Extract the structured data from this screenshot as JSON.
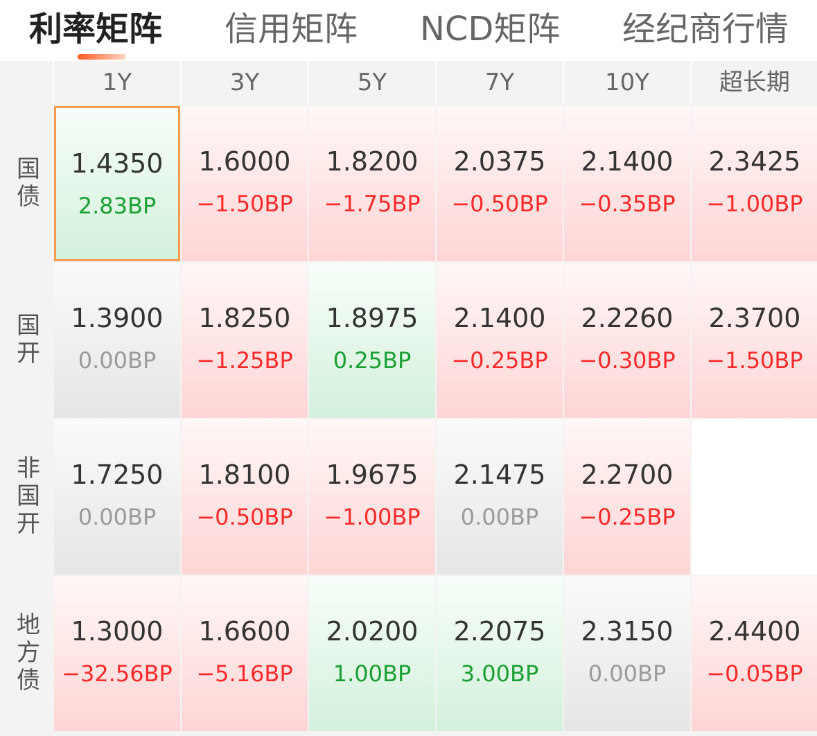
{
  "tabs": [
    {
      "label": "利率矩阵",
      "active": true
    },
    {
      "label": "信用矩阵",
      "active": false
    },
    {
      "label": "NCD矩阵",
      "active": false
    },
    {
      "label": "经纪商行情",
      "active": false
    }
  ],
  "columns": [
    "1Y",
    "3Y",
    "5Y",
    "7Y",
    "10Y",
    "超长期"
  ],
  "rows": [
    {
      "label": "国债",
      "cells": [
        {
          "value": "1.4350",
          "change": "2.83BP",
          "trend": "down",
          "selected": true
        },
        {
          "value": "1.6000",
          "change": "−1.50BP",
          "trend": "up"
        },
        {
          "value": "1.8200",
          "change": "−1.75BP",
          "trend": "up"
        },
        {
          "value": "2.0375",
          "change": "−0.50BP",
          "trend": "up"
        },
        {
          "value": "2.1400",
          "change": "−0.35BP",
          "trend": "up"
        },
        {
          "value": "2.3425",
          "change": "−1.00BP",
          "trend": "up"
        }
      ]
    },
    {
      "label": "国开",
      "cells": [
        {
          "value": "1.3900",
          "change": "0.00BP",
          "trend": "flat"
        },
        {
          "value": "1.8250",
          "change": "−1.25BP",
          "trend": "up"
        },
        {
          "value": "1.8975",
          "change": "0.25BP",
          "trend": "down"
        },
        {
          "value": "2.1400",
          "change": "−0.25BP",
          "trend": "up"
        },
        {
          "value": "2.2260",
          "change": "−0.30BP",
          "trend": "up"
        },
        {
          "value": "2.3700",
          "change": "−1.50BP",
          "trend": "up"
        }
      ]
    },
    {
      "label": "非国开",
      "cells": [
        {
          "value": "1.7250",
          "change": "0.00BP",
          "trend": "flat"
        },
        {
          "value": "1.8100",
          "change": "−0.50BP",
          "trend": "up"
        },
        {
          "value": "1.9675",
          "change": "−1.00BP",
          "trend": "up"
        },
        {
          "value": "2.1475",
          "change": "0.00BP",
          "trend": "flat"
        },
        {
          "value": "2.2700",
          "change": "−0.25BP",
          "trend": "up"
        },
        {
          "value": "",
          "change": "",
          "trend": "empty"
        }
      ]
    },
    {
      "label": "地方债",
      "cells": [
        {
          "value": "1.3000",
          "change": "−32.56BP",
          "trend": "up"
        },
        {
          "value": "1.6600",
          "change": "−5.16BP",
          "trend": "up"
        },
        {
          "value": "2.0200",
          "change": "1.00BP",
          "trend": "down"
        },
        {
          "value": "2.2075",
          "change": "3.00BP",
          "trend": "down"
        },
        {
          "value": "2.3150",
          "change": "0.00BP",
          "trend": "flat"
        },
        {
          "value": "2.4400",
          "change": "−0.05BP",
          "trend": "up"
        }
      ]
    }
  ],
  "colors": {
    "accent": "#ff5a1f",
    "selected_border": "#f39a4b",
    "negative_change": "#ff2a2a",
    "positive_change": "#1aa032",
    "zero_change": "#9a9a9a"
  }
}
